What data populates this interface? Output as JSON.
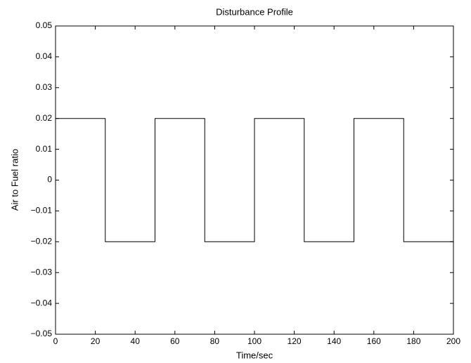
{
  "chart_data": {
    "type": "line",
    "title": "Disturbance Profile",
    "x_label": "Time/sec",
    "y_label": "Air to Fuel ratio",
    "series": [
      {
        "color": "#000000",
        "x": [
          0,
          25,
          25,
          50,
          50,
          75,
          75,
          100,
          100,
          125,
          125,
          150,
          150,
          175,
          175,
          200
        ],
        "values": [
          0.02,
          0.02,
          -0.02,
          -0.02,
          0.02,
          0.02,
          -0.02,
          -0.02,
          0.02,
          0.02,
          -0.02,
          -0.02,
          0.02,
          0.02,
          -0.02,
          -0.02
        ]
      }
    ],
    "xlim": [
      0,
      200
    ],
    "xticks": [
      0,
      20,
      40,
      60,
      80,
      100,
      120,
      140,
      160,
      180,
      200
    ],
    "ylim": [
      -0.05,
      0.05
    ],
    "yticks": [
      {
        "value": -0.05,
        "label": "−0.05"
      },
      {
        "value": -0.04,
        "label": "−0.04"
      },
      {
        "value": -0.03,
        "label": "−0.03"
      },
      {
        "value": -0.02,
        "label": "−0.02"
      },
      {
        "value": -0.01,
        "label": "−0.01"
      },
      0,
      0.01,
      0.02,
      0.03,
      0.04,
      0.05
    ],
    "grid": false
  }
}
